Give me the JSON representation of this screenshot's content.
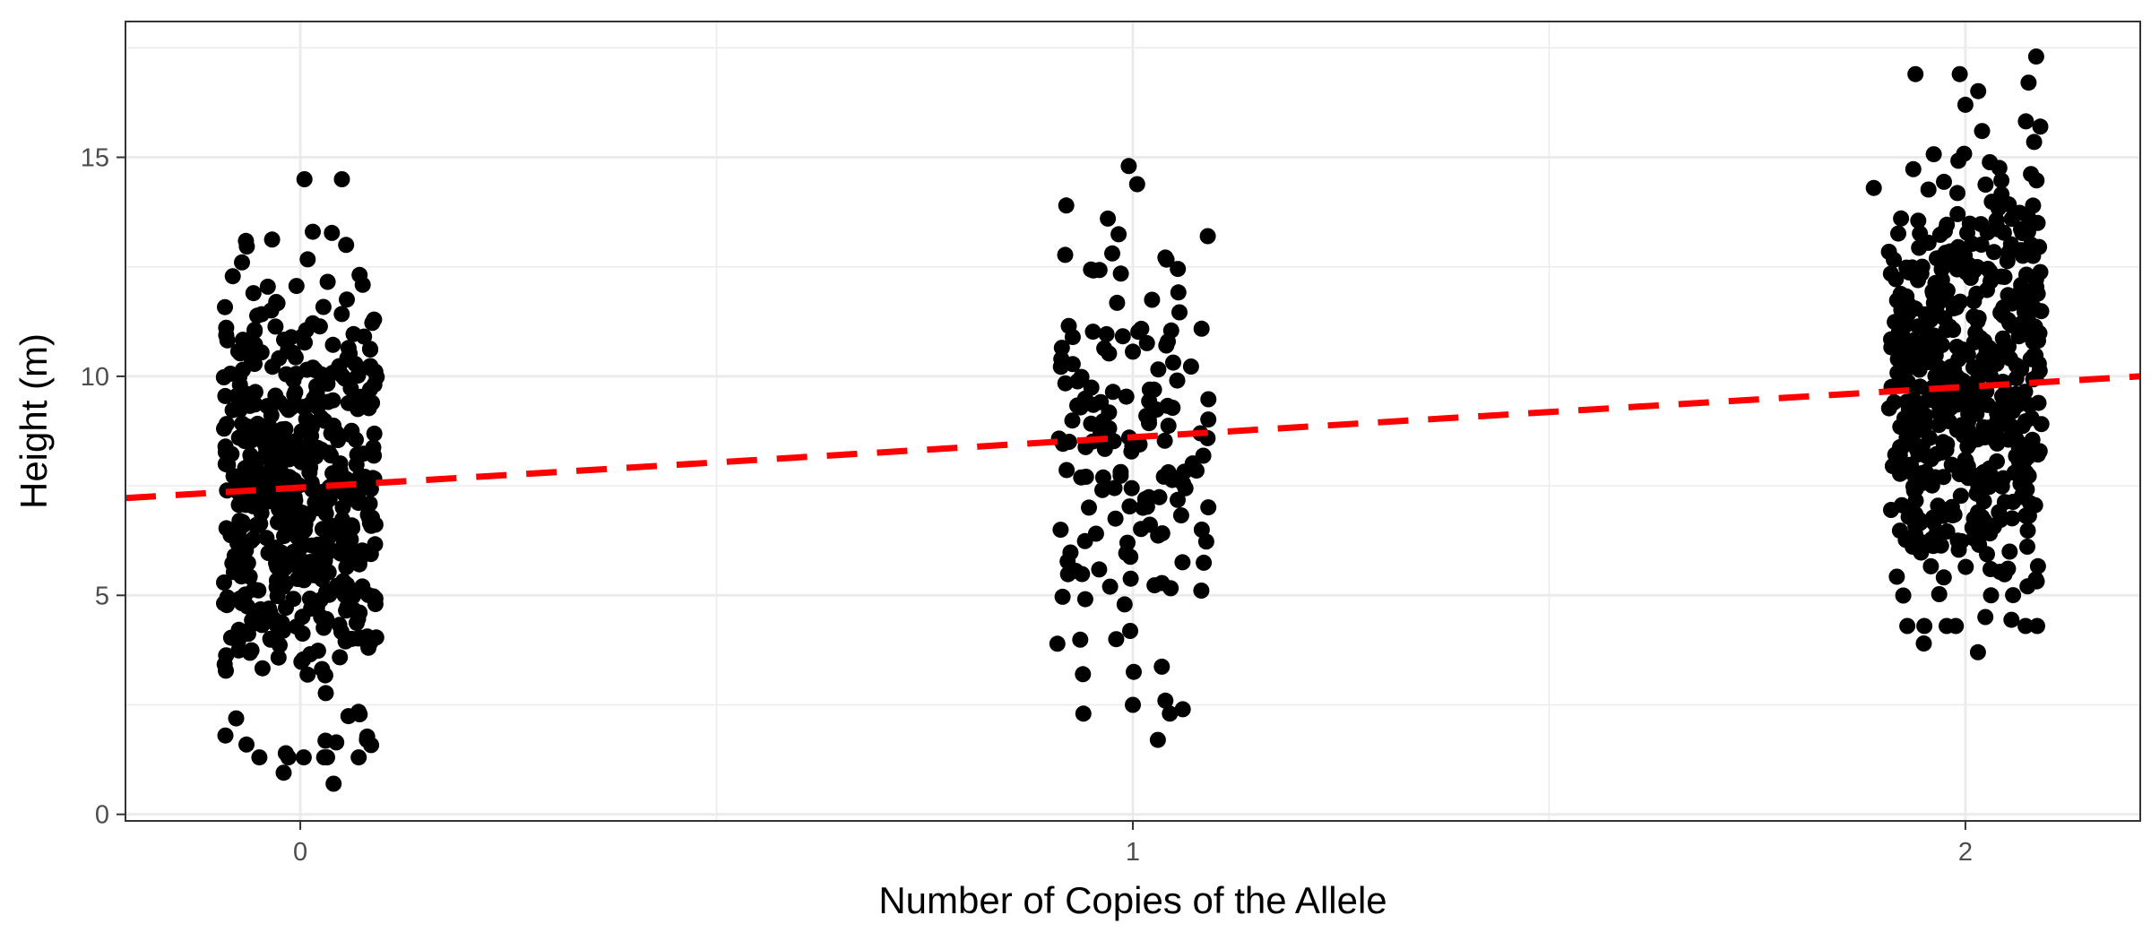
{
  "chart_data": {
    "type": "scatter",
    "title": "",
    "xlabel": "Number of Copies of the Allele",
    "ylabel": "Height (m)",
    "xlim": [
      -0.21,
      2.21
    ],
    "ylim": [
      -0.15,
      18.1
    ],
    "x_ticks": [
      0,
      1,
      2
    ],
    "x_tick_labels": [
      "0",
      "1",
      "2"
    ],
    "y_ticks": [
      0,
      5,
      10,
      15
    ],
    "y_tick_labels": [
      "0",
      "5",
      "10",
      "15"
    ],
    "x_minor_grid": [
      0.5,
      1.5
    ],
    "y_minor_grid": [
      2.5,
      7.5,
      12.5,
      17.5
    ],
    "grid": true,
    "legend": "none",
    "jitter_width": 0.1,
    "groups": [
      {
        "x": 0,
        "n": 520,
        "mean": 7.4,
        "sd": 2.4,
        "min": 0.7,
        "max": 14.5
      },
      {
        "x": 1,
        "n": 150,
        "mean": 8.5,
        "sd": 2.5,
        "min": 1.7,
        "max": 14.8
      },
      {
        "x": 2,
        "n": 520,
        "mean": 9.75,
        "sd": 2.3,
        "min": 3.7,
        "max": 17.3
      }
    ],
    "highlight_points": [
      {
        "x": 0.005,
        "y": 14.5
      },
      {
        "x": 0.05,
        "y": 14.5
      },
      {
        "x": 0.015,
        "y": 13.3
      },
      {
        "x": 0.055,
        "y": 13.0
      },
      {
        "x": -0.02,
        "y": 0.95
      },
      {
        "x": 0.04,
        "y": 0.7
      },
      {
        "x": -0.09,
        "y": 1.8
      },
      {
        "x": 0.08,
        "y": 1.7
      },
      {
        "x": -0.07,
        "y": 12.6
      },
      {
        "x": 0.995,
        "y": 14.8
      },
      {
        "x": 0.97,
        "y": 13.6
      },
      {
        "x": 0.92,
        "y": 13.9
      },
      {
        "x": 1.03,
        "y": 1.7
      },
      {
        "x": 1.06,
        "y": 2.4
      },
      {
        "x": 1.0,
        "y": 2.5
      },
      {
        "x": 1.09,
        "y": 13.2
      },
      {
        "x": 0.94,
        "y": 3.2
      },
      {
        "x": 0.98,
        "y": 4.0
      },
      {
        "x": 2.085,
        "y": 17.3
      },
      {
        "x": 1.94,
        "y": 16.9
      },
      {
        "x": 2.0,
        "y": 16.2
      },
      {
        "x": 2.02,
        "y": 15.6
      },
      {
        "x": 2.015,
        "y": 3.7
      },
      {
        "x": 1.95,
        "y": 3.9
      },
      {
        "x": 2.09,
        "y": 15.7
      },
      {
        "x": 1.89,
        "y": 14.3
      }
    ],
    "regression_line": {
      "x": [
        -0.21,
        2.21
      ],
      "y": [
        7.22,
        10.0
      ],
      "color": "#ff0000",
      "style": "dashed"
    },
    "point_color": "#000000"
  }
}
